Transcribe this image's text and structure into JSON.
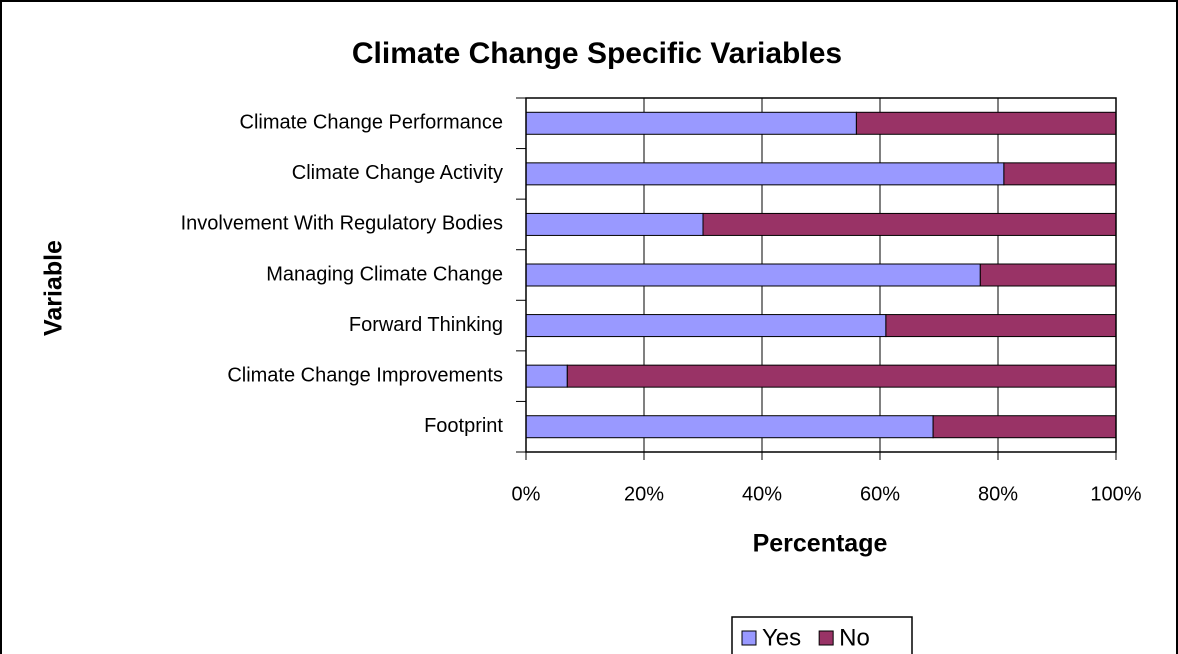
{
  "chart_data": {
    "type": "stacked_bar_horizontal",
    "title": "Climate Change Specific Variables",
    "x_label": "Percentage",
    "y_label": "Variable",
    "categories": [
      "Climate Change Performance",
      "Climate Change Activity",
      "Involvement With Regulatory Bodies",
      "Managing Climate Change",
      "Forward Thinking",
      "Climate Change Improvements",
      "Footprint"
    ],
    "series": [
      {
        "name": "Yes",
        "color": "#9999ff",
        "values": [
          56,
          81,
          30,
          77,
          61,
          7,
          69
        ]
      },
      {
        "name": "No",
        "color": "#993366",
        "values": [
          44,
          19,
          70,
          23,
          39,
          93,
          31
        ]
      }
    ],
    "xlim": [
      0,
      100
    ],
    "xticks": [
      {
        "value": 0,
        "label": "0%"
      },
      {
        "value": 20,
        "label": "20%"
      },
      {
        "value": 40,
        "label": "40%"
      },
      {
        "value": 60,
        "label": "60%"
      },
      {
        "value": 80,
        "label": "80%"
      },
      {
        "value": 100,
        "label": "100%"
      }
    ],
    "grid": true,
    "legend": "bottom"
  }
}
